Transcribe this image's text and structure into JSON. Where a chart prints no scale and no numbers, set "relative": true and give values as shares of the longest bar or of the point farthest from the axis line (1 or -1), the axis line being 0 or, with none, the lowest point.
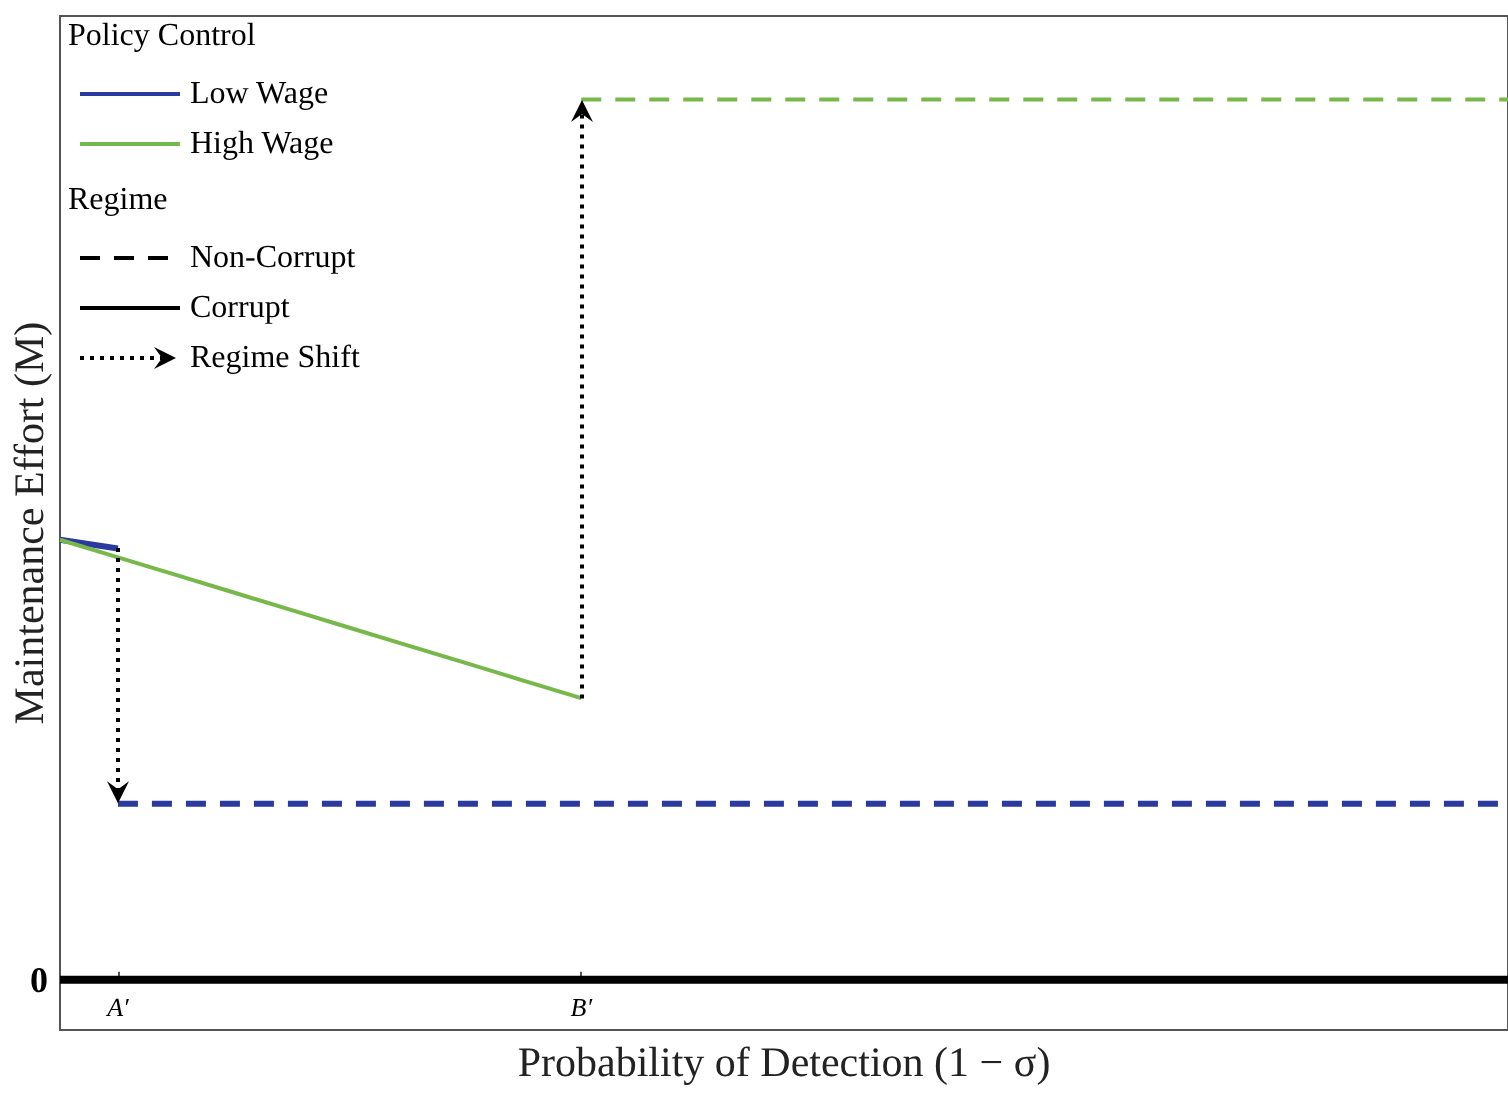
{
  "chart_data": {
    "type": "line",
    "relative": true,
    "xlabel": "Probability of Detection (1 − σ)",
    "ylabel": "Maintenance Effort (M)",
    "legend_title": "Policy Control",
    "legend": "top left",
    "grid": false,
    "marker": "none",
    "categories": [
      null,
      "A′",
      null,
      null,
      null,
      null,
      null,
      null,
      null,
      "B′",
      null,
      null,
      null,
      null,
      null,
      null,
      null,
      null,
      null,
      null,
      null,
      null,
      null,
      null,
      null,
      null
    ],
    "annotations": [
      "0",
      "Regime",
      "Regime Shift"
    ],
    "series": [
      {
        "name": "Low Wage",
        "color": "#2b3a9e",
        "values": [
          0.5,
          0.49,
          null,
          null,
          null,
          null,
          null,
          null,
          null,
          null,
          null,
          null,
          null,
          null,
          null,
          null,
          null,
          null,
          null,
          null,
          null,
          null,
          null,
          null,
          null,
          null
        ]
      },
      {
        "name": "High Wage",
        "color": "#77b84a",
        "values": [
          0.5,
          0.48,
          0.46,
          0.44,
          0.42,
          0.4,
          0.38,
          0.36,
          0.34,
          0.32,
          null,
          null,
          null,
          null,
          null,
          null,
          null,
          null,
          null,
          null,
          null,
          null,
          null,
          null,
          null,
          null
        ]
      },
      {
        "color": "#2b3a9e",
        "line_style": "dashed",
        "values": [
          null,
          0.2,
          0.2,
          0.2,
          0.2,
          0.2,
          0.2,
          0.2,
          0.2,
          0.2,
          0.2,
          0.2,
          0.2,
          0.2,
          0.2,
          0.2,
          0.2,
          0.2,
          0.2,
          0.2,
          0.2,
          0.2,
          0.2,
          0.2,
          0.2,
          0.2
        ]
      },
      {
        "color": "#77b84a",
        "line_style": "dashed",
        "values": [
          null,
          null,
          null,
          null,
          null,
          null,
          null,
          null,
          null,
          1,
          1,
          1,
          1,
          1,
          1,
          1,
          1,
          1,
          1,
          1,
          1,
          1,
          1,
          1,
          1,
          1
        ]
      },
      {
        "name": "Non-Corrupt",
        "color": "#000000",
        "line_style": "dashed",
        "values": [
          null,
          null,
          null,
          null,
          null,
          null,
          null,
          null,
          null,
          null,
          null,
          null,
          null,
          null,
          null,
          null,
          null,
          null,
          null,
          null,
          null,
          null,
          null,
          null,
          null,
          null
        ]
      },
      {
        "name": "Corrupt",
        "color": "#000000",
        "line_style": "solid",
        "values": [
          null,
          null,
          null,
          null,
          null,
          null,
          null,
          null,
          null,
          null,
          null,
          null,
          null,
          null,
          null,
          null,
          null,
          null,
          null,
          null,
          null,
          null,
          null,
          null,
          null,
          null
        ]
      }
    ]
  }
}
